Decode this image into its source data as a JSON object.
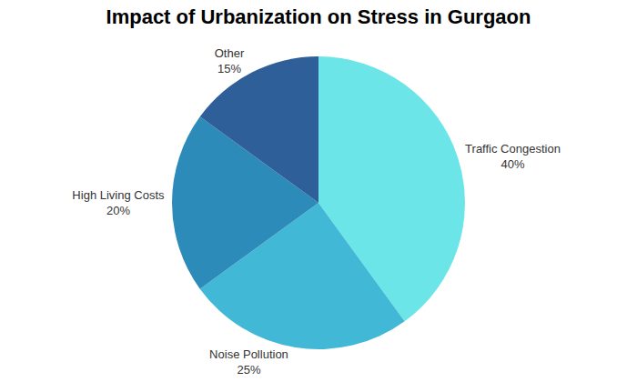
{
  "chart_data": {
    "type": "pie",
    "title": "Impact of Urbanization on Stress in Gurgaon",
    "categories": [
      "Traffic Congestion",
      "Noise Pollution",
      "High Living Costs",
      "Other"
    ],
    "values": [
      40,
      25,
      20,
      15
    ],
    "value_labels": [
      "40%",
      "25%",
      "20%",
      "15%"
    ],
    "colors": [
      "#6ce5e8",
      "#41b8d5",
      "#2d8bba",
      "#2f5f98"
    ],
    "data_labels": true
  }
}
